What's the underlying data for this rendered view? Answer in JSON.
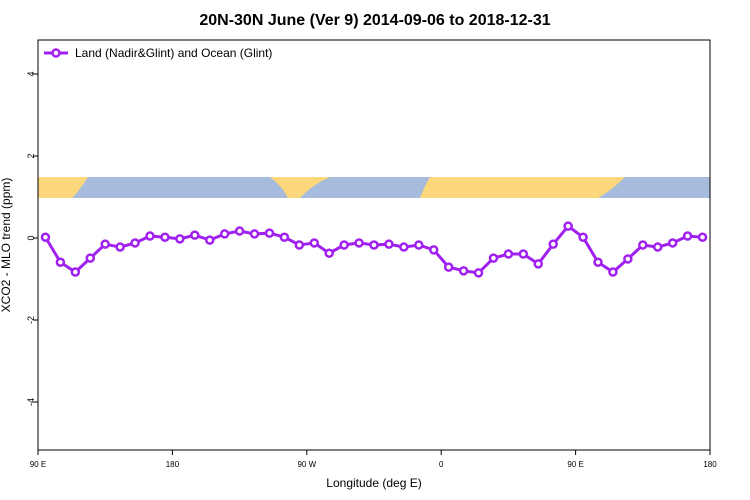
{
  "chart_data": {
    "type": "line",
    "title": "20N-30N June (Ver 9)   2014-09-06 to 2018-12-31",
    "x_label": "Longitude (deg E)",
    "y_label": "XCO2 - MLO trend (ppm)",
    "x": [
      95,
      105,
      115,
      125,
      135,
      145,
      155,
      165,
      175,
      185,
      195,
      205,
      215,
      225,
      235,
      245,
      255,
      265,
      275,
      285,
      295,
      305,
      315,
      325,
      335,
      345,
      355,
      365,
      375,
      385,
      395,
      405,
      415,
      425,
      435,
      445,
      455,
      465,
      475,
      485,
      495,
      505,
      515,
      525,
      535
    ],
    "series": [
      {
        "name": "Land (Nadir&Glint) and Ocean (Glint)",
        "color": "#a020f0",
        "values": [
          0.02,
          -0.59,
          -0.83,
          -0.49,
          -0.15,
          -0.22,
          -0.12,
          0.05,
          0.02,
          -0.02,
          0.07,
          -0.05,
          0.1,
          0.17,
          0.1,
          0.12,
          0.02,
          -0.17,
          -0.12,
          -0.37,
          -0.17,
          -0.12,
          -0.17,
          -0.15,
          -0.22,
          -0.17,
          -0.29,
          -0.71,
          -0.8,
          -0.85,
          -0.49,
          -0.39,
          -0.39,
          -0.63,
          -0.15,
          0.29,
          0.02,
          -0.59,
          -0.83,
          -0.51,
          -0.17,
          -0.22,
          -0.12,
          0.05,
          0.02
        ]
      }
    ],
    "xlim": [
      90,
      540
    ],
    "xticks": [
      {
        "value": 90,
        "label": "90 E"
      },
      180,
      {
        "value": 270,
        "label": "90 W"
      },
      {
        "value": 360,
        "label": "0"
      },
      {
        "value": 450,
        "label": "90 E"
      },
      {
        "value": 540,
        "label": "180"
      }
    ],
    "ylim": [
      -5.17,
      4.83
    ],
    "yticks": [
      -4,
      -2,
      0,
      2,
      4
    ],
    "legend_position": "top-left"
  }
}
